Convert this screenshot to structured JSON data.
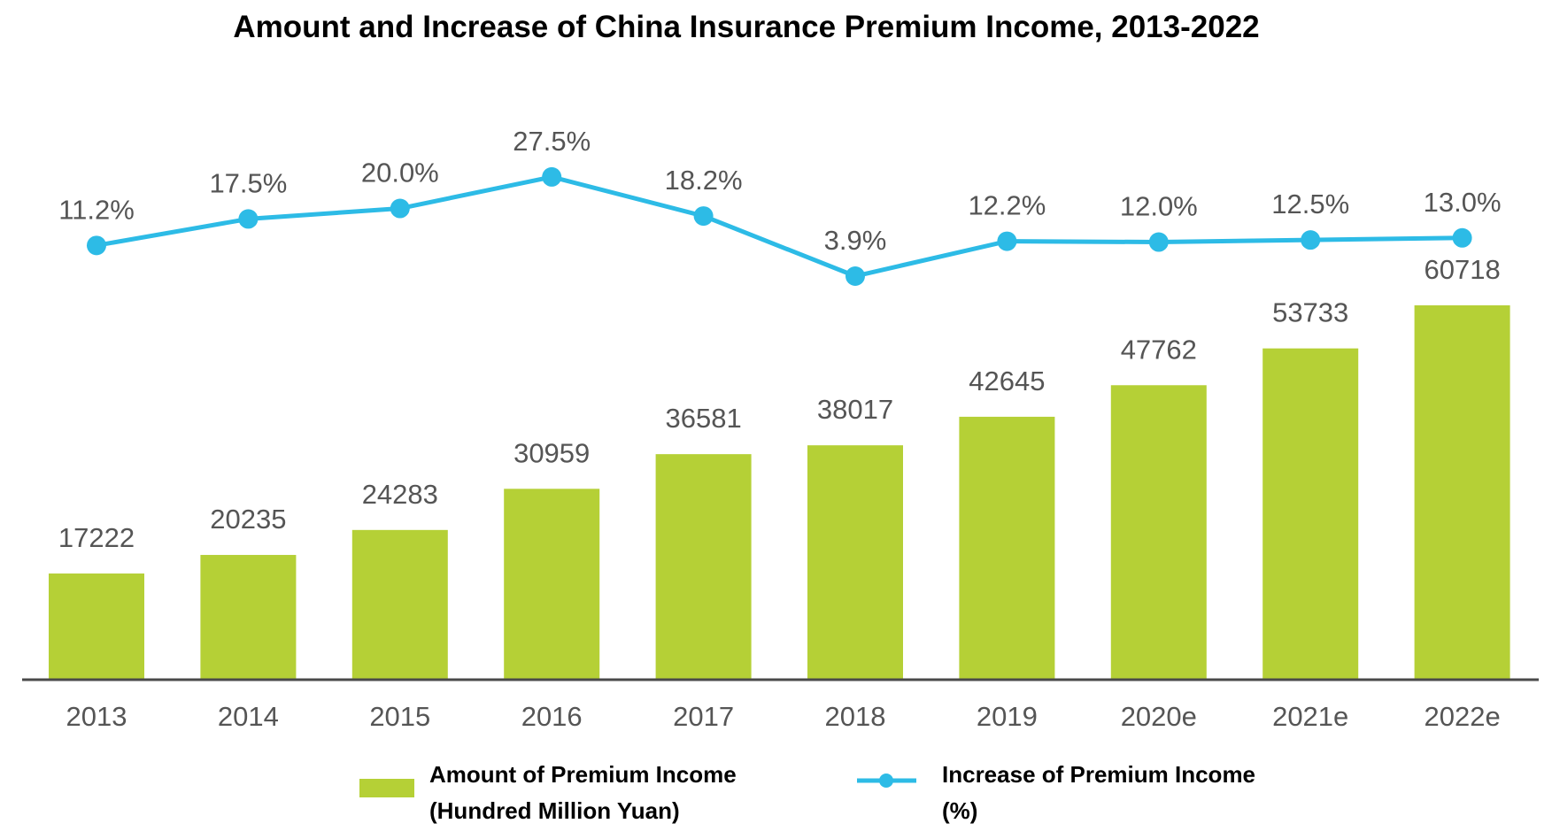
{
  "chart_data": {
    "type": "bar+line",
    "title": "Amount and Increase of China Insurance Premium Income, 2013-2022",
    "categories": [
      "2013",
      "2014",
      "2015",
      "2016",
      "2017",
      "2018",
      "2019",
      "2020e",
      "2021e",
      "2022e"
    ],
    "series": [
      {
        "name": "Amount of Premium Income (Hundred Million Yuan)",
        "legend_lines": [
          "Amount of Premium Income",
          "(Hundred Million Yuan)"
        ],
        "type": "bar",
        "color": "#b5d036",
        "values": [
          17222,
          20235,
          24283,
          30959,
          36581,
          38017,
          42645,
          47762,
          53733,
          60718
        ]
      },
      {
        "name": "Increase of Premium Income (%)",
        "legend_lines": [
          "Increase of Premium Income",
          "(%)"
        ],
        "type": "line",
        "color": "#2dbbe6",
        "values": [
          11.2,
          17.5,
          20.0,
          27.5,
          18.2,
          3.9,
          12.2,
          12.0,
          12.5,
          13.0
        ],
        "labels": [
          "11.2%",
          "17.5%",
          "20.0%",
          "27.5%",
          "18.2%",
          "3.9%",
          "12.2%",
          "12.0%",
          "12.5%",
          "13.0%"
        ]
      }
    ],
    "legend_position": "bottom",
    "grid": false
  }
}
